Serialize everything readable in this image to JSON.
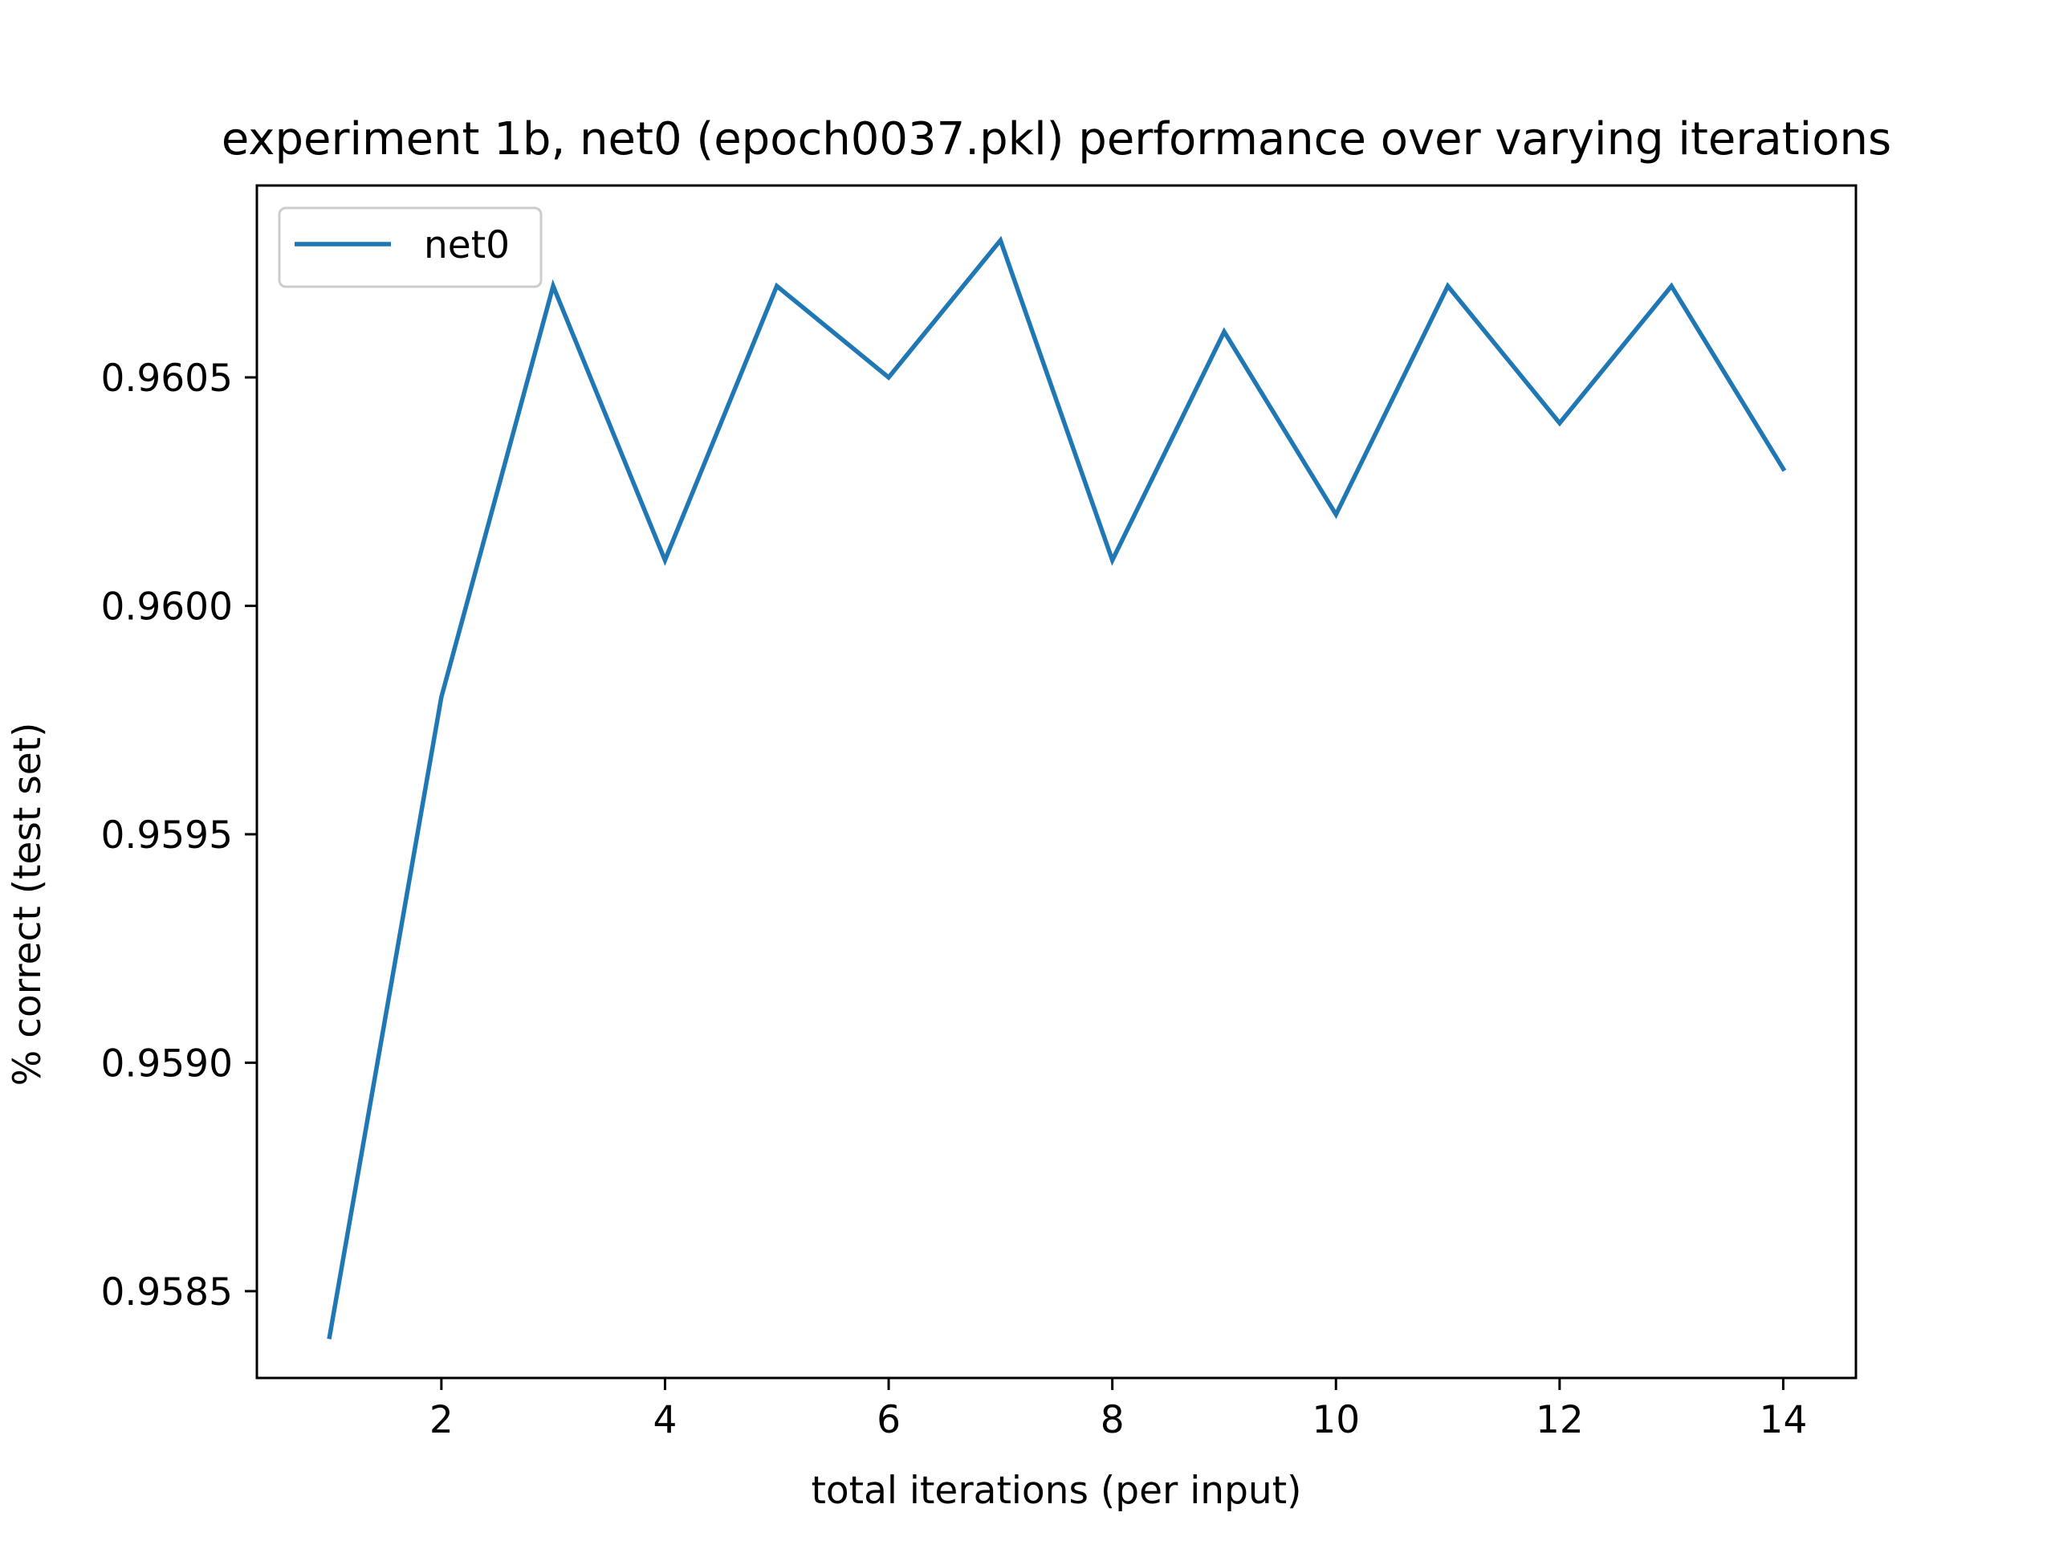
{
  "chart_data": {
    "type": "line",
    "title": "experiment 1b, net0 (epoch0037.pkl) performance over varying iterations",
    "xlabel": "total iterations (per input)",
    "ylabel": "% correct (test set)",
    "x": [
      1,
      2,
      3,
      4,
      5,
      6,
      7,
      8,
      9,
      10,
      11,
      12,
      13,
      14
    ],
    "series": [
      {
        "name": "net0",
        "color": "#1f77b4",
        "values": [
          0.9584,
          0.9598,
          0.9607,
          0.9601,
          0.9607,
          0.9605,
          0.9608,
          0.9601,
          0.9606,
          0.9602,
          0.9607,
          0.9604,
          0.9607,
          0.9603
        ]
      }
    ],
    "xlim": [
      0.35,
      14.65
    ],
    "ylim": [
      0.95831,
      0.96092
    ],
    "xticks": [
      2,
      4,
      6,
      8,
      10,
      12,
      14
    ],
    "xtick_labels": [
      "2",
      "4",
      "6",
      "8",
      "10",
      "12",
      "14"
    ],
    "yticks": [
      0.9585,
      0.959,
      0.9595,
      0.96,
      0.9605
    ],
    "ytick_labels": [
      "0.9585",
      "0.9590",
      "0.9595",
      "0.9600",
      "0.9605"
    ],
    "grid": false,
    "legend_position": "upper left"
  }
}
